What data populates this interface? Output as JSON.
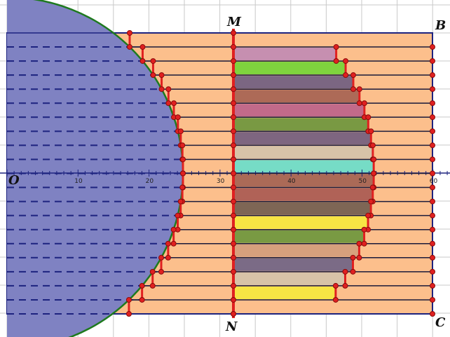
{
  "labels": {
    "M": "M",
    "N": "N",
    "B": "B",
    "C": "C",
    "O": "O"
  },
  "axis": {
    "ticks": [
      "10",
      "20",
      "30",
      "40",
      "50",
      "60"
    ]
  },
  "colors": {
    "background": "#ffffff",
    "grid": "#c9c9c9",
    "rect_fill": "#fcbf8c",
    "outline": "#1d237f",
    "circle_fill": "#7f82c2",
    "circle_stroke": "#1e7a1e",
    "marker": "#e02020",
    "marker_stroke": "#8a0b0b",
    "slices": [
      "#c68fb0",
      "#7fd33e",
      "#7b6682",
      "#ad6a57",
      "#c26a8a",
      "#799943",
      "#7e6680",
      "#d7c3a8",
      "#76dcc6",
      "#ab6a57",
      "#b06257",
      "#7e6655",
      "#f7e544",
      "#799a43",
      "#d7a07d",
      "#7b6b86",
      "#d7c3a8",
      "#f7e544"
    ]
  },
  "icons": {
    "point": "red-dot-icon"
  }
}
